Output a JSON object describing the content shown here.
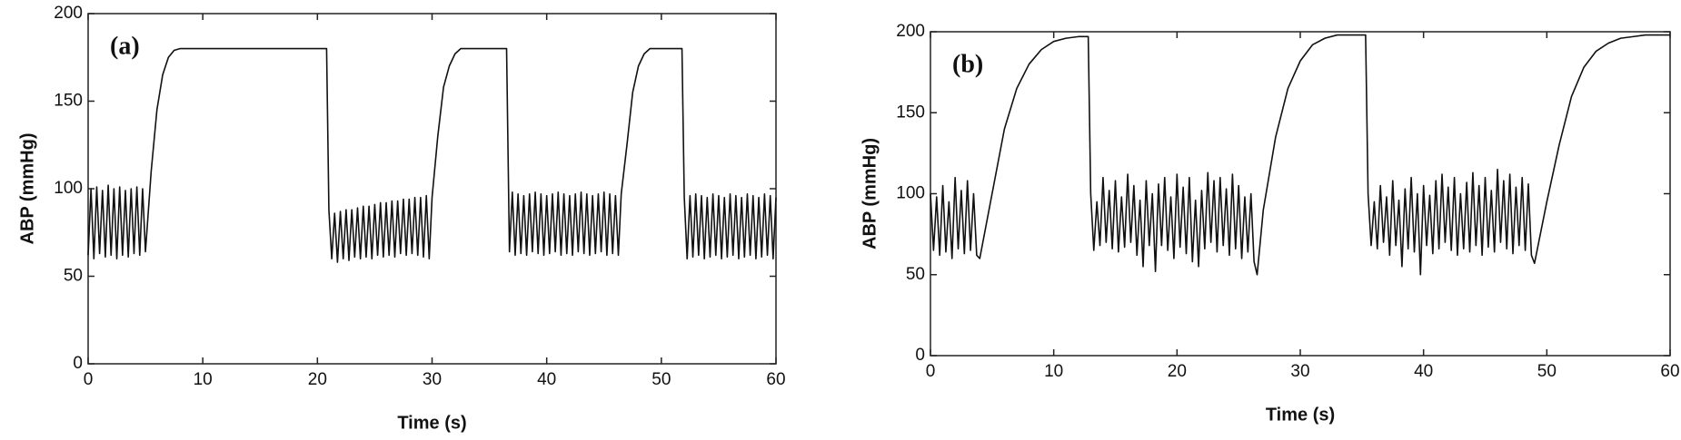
{
  "chart_data": [
    {
      "type": "line",
      "label": "(a)",
      "xlabel": "Time (s)",
      "ylabel": "ABP (mmHg)",
      "xlim": [
        0,
        60
      ],
      "xticks": [
        0,
        10,
        20,
        30,
        40,
        50,
        60
      ],
      "ylim": [
        0,
        200
      ],
      "yticks": [
        0,
        50,
        100,
        150,
        200
      ],
      "x": [
        0,
        0.25,
        0.5,
        0.75,
        1,
        1.25,
        1.5,
        1.75,
        2,
        2.25,
        2.5,
        2.75,
        3,
        3.25,
        3.5,
        3.75,
        4,
        4.25,
        4.5,
        4.75,
        5,
        5.5,
        6,
        6.5,
        7,
        7.5,
        8,
        20.8,
        21,
        21.25,
        21.5,
        21.75,
        22,
        22.25,
        22.5,
        22.75,
        23,
        23.25,
        23.5,
        23.75,
        24,
        24.25,
        24.5,
        24.75,
        25,
        25.25,
        25.5,
        25.75,
        26,
        26.25,
        26.5,
        26.75,
        27,
        27.25,
        27.5,
        27.75,
        28,
        28.25,
        28.5,
        28.75,
        29,
        29.25,
        29.5,
        29.75,
        30,
        30.5,
        31,
        31.5,
        32,
        32.5,
        36.5,
        36.75,
        37,
        37.25,
        37.5,
        37.75,
        38,
        38.25,
        38.5,
        38.75,
        39,
        39.25,
        39.5,
        39.75,
        40,
        40.25,
        40.5,
        40.75,
        41,
        41.25,
        41.5,
        41.75,
        42,
        42.25,
        42.5,
        42.75,
        43,
        43.25,
        43.5,
        43.75,
        44,
        44.25,
        44.5,
        44.75,
        45,
        45.25,
        45.5,
        45.75,
        46,
        46.25,
        46.5,
        47,
        47.5,
        48,
        48.5,
        49,
        51.8,
        52,
        52.25,
        52.5,
        52.75,
        53,
        53.25,
        53.5,
        53.75,
        54,
        54.25,
        54.5,
        54.75,
        55,
        55.25,
        55.5,
        55.75,
        56,
        56.25,
        56.5,
        56.75,
        57,
        57.25,
        57.5,
        57.75,
        58,
        58.25,
        58.5,
        58.75,
        59,
        59.25,
        59.5,
        59.75,
        60
      ],
      "series": [
        {
          "color": "#111111",
          "values": [
            62,
            100,
            60,
            101,
            63,
            99,
            61,
            102,
            62,
            100,
            60,
            101,
            62,
            99,
            61,
            100,
            63,
            101,
            62,
            100,
            64,
            110,
            145,
            165,
            175,
            179,
            180,
            180,
            88,
            60,
            86,
            58,
            87,
            60,
            88,
            59,
            88,
            61,
            89,
            60,
            90,
            61,
            90,
            60,
            91,
            62,
            92,
            61,
            92,
            62,
            93,
            61,
            93,
            63,
            94,
            62,
            94,
            63,
            95,
            62,
            95,
            61,
            96,
            60,
            95,
            130,
            158,
            170,
            177,
            180,
            180,
            64,
            98,
            62,
            97,
            63,
            96,
            62,
            97,
            64,
            98,
            63,
            97,
            62,
            96,
            63,
            97,
            64,
            98,
            62,
            97,
            63,
            96,
            62,
            97,
            64,
            98,
            63,
            97,
            62,
            96,
            63,
            97,
            64,
            98,
            62,
            97,
            63,
            96,
            62,
            97,
            125,
            155,
            170,
            177,
            180,
            180,
            95,
            60,
            96,
            61,
            97,
            62,
            96,
            60,
            95,
            61,
            97,
            62,
            96,
            60,
            95,
            61,
            97,
            62,
            96,
            60,
            95,
            61,
            97,
            62,
            96,
            60,
            95,
            61,
            97,
            62,
            96,
            60,
            95
          ]
        }
      ]
    },
    {
      "type": "line",
      "label": "(b)",
      "xlabel": "Time (s)",
      "ylabel": "ABP (mmHg)",
      "xlim": [
        0,
        60
      ],
      "xticks": [
        0,
        10,
        20,
        30,
        40,
        50,
        60
      ],
      "ylim": [
        0,
        200
      ],
      "yticks": [
        0,
        50,
        100,
        150,
        200
      ],
      "x": [
        0,
        0.25,
        0.5,
        0.75,
        1,
        1.25,
        1.5,
        1.75,
        2,
        2.25,
        2.5,
        2.75,
        3,
        3.25,
        3.5,
        3.75,
        4,
        5,
        6,
        7,
        8,
        9,
        10,
        11,
        12,
        12.8,
        13,
        13.25,
        13.5,
        13.75,
        14,
        14.25,
        14.5,
        14.75,
        15,
        15.25,
        15.5,
        15.75,
        16,
        16.25,
        16.5,
        16.75,
        17,
        17.25,
        17.5,
        17.75,
        18,
        18.25,
        18.5,
        18.75,
        19,
        19.25,
        19.5,
        19.75,
        20,
        20.25,
        20.5,
        20.75,
        21,
        21.25,
        21.5,
        21.75,
        22,
        22.25,
        22.5,
        22.75,
        23,
        23.25,
        23.5,
        23.75,
        24,
        24.25,
        24.5,
        24.75,
        25,
        25.25,
        25.5,
        25.75,
        26,
        26.25,
        26.5,
        27,
        28,
        29,
        30,
        31,
        32,
        33,
        35.3,
        35.5,
        35.75,
        36,
        36.25,
        36.5,
        36.75,
        37,
        37.25,
        37.5,
        37.75,
        38,
        38.25,
        38.5,
        38.75,
        39,
        39.25,
        39.5,
        39.75,
        40,
        40.25,
        40.5,
        40.75,
        41,
        41.25,
        41.5,
        41.75,
        42,
        42.25,
        42.5,
        42.75,
        43,
        43.25,
        43.5,
        43.75,
        44,
        44.25,
        44.5,
        44.75,
        45,
        45.25,
        45.5,
        45.75,
        46,
        46.25,
        46.5,
        46.75,
        47,
        47.25,
        47.5,
        47.75,
        48,
        48.25,
        48.5,
        48.75,
        49,
        50,
        51,
        52,
        53,
        54,
        55,
        56,
        57,
        58,
        60
      ],
      "series": [
        {
          "color": "#111111",
          "values": [
            100,
            65,
            98,
            62,
            105,
            64,
            95,
            60,
            110,
            66,
            102,
            63,
            108,
            65,
            100,
            62,
            60,
            100,
            140,
            165,
            180,
            189,
            194,
            196,
            197,
            197,
            100,
            65,
            95,
            68,
            110,
            70,
            102,
            66,
            108,
            64,
            98,
            67,
            112,
            70,
            105,
            62,
            96,
            55,
            108,
            68,
            100,
            52,
            106,
            68,
            110,
            65,
            98,
            60,
            112,
            67,
            104,
            63,
            110,
            58,
            96,
            55,
            102,
            66,
            113,
            70,
            108,
            64,
            110,
            68,
            103,
            62,
            112,
            66,
            105,
            60,
            98,
            64,
            100,
            58,
            50,
            90,
            135,
            165,
            182,
            192,
            196,
            198,
            198,
            100,
            68,
            95,
            66,
            105,
            70,
            98,
            62,
            108,
            68,
            96,
            55,
            103,
            66,
            110,
            64,
            100,
            50,
            105,
            68,
            99,
            63,
            108,
            66,
            112,
            70,
            104,
            65,
            110,
            62,
            100,
            66,
            107,
            64,
            113,
            68,
            105,
            62,
            110,
            67,
            102,
            64,
            115,
            70,
            108,
            66,
            112,
            63,
            104,
            68,
            110,
            65,
            106,
            62,
            57,
            95,
            130,
            160,
            178,
            188,
            193,
            196,
            197,
            198,
            198
          ]
        }
      ]
    }
  ]
}
